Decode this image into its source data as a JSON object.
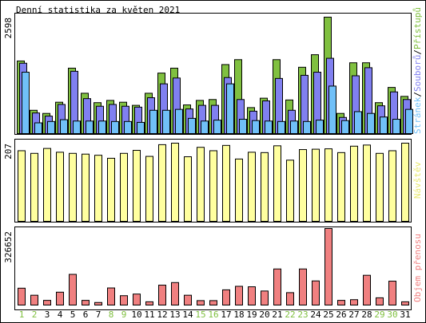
{
  "title": "Denní statistika za květen 2021",
  "panels": {
    "top": {
      "ymax_label": "2598",
      "legend": {
        "pages": "Stránek",
        "files": "Souborů",
        "hits": "Přístupů",
        "sep": "/"
      }
    },
    "middle": {
      "ymax_label": "207",
      "legend": "Návštěv"
    },
    "bottom": {
      "ymax_label": "326652",
      "legend": "Objem přenosu"
    }
  },
  "colors": {
    "hits": "#80c040",
    "files": "#8080f0",
    "pages": "#70c0f8",
    "visits": "#ffff9f",
    "kbytes": "#f08080",
    "weekend_label": "#80c040",
    "weekday_label": "#000000",
    "plot_bg": "#ffffff",
    "frame": "#000000"
  },
  "chart_data": [
    {
      "type": "bar",
      "title": "Denní statistika za květen 2021",
      "categories": [
        "1",
        "2",
        "3",
        "4",
        "5",
        "6",
        "7",
        "8",
        "9",
        "10",
        "11",
        "12",
        "13",
        "14",
        "15",
        "16",
        "17",
        "18",
        "19",
        "20",
        "21",
        "22",
        "23",
        "24",
        "25",
        "26",
        "27",
        "28",
        "29",
        "30",
        "31"
      ],
      "weekend_days": [
        "1",
        "2",
        "8",
        "9",
        "15",
        "16",
        "22",
        "23",
        "29",
        "30"
      ],
      "ylim": [
        0,
        2598
      ],
      "series": [
        {
          "name": "Přístupů",
          "values": [
            1620,
            520,
            450,
            700,
            1460,
            900,
            690,
            740,
            700,
            630,
            900,
            1350,
            1460,
            640,
            740,
            760,
            1540,
            1650,
            580,
            790,
            1650,
            750,
            1480,
            1760,
            2598,
            450,
            1580,
            1580,
            690,
            1030,
            830
          ]
        },
        {
          "name": "Souborů",
          "values": [
            1570,
            460,
            390,
            650,
            1390,
            780,
            610,
            650,
            610,
            590,
            800,
            1110,
            1240,
            550,
            630,
            630,
            1250,
            760,
            500,
            730,
            1230,
            520,
            1300,
            1370,
            1680,
            360,
            1290,
            1470,
            620,
            930,
            760
          ]
        },
        {
          "name": "Stránek",
          "values": [
            1370,
            240,
            270,
            310,
            280,
            280,
            280,
            270,
            270,
            250,
            520,
            520,
            540,
            340,
            280,
            300,
            1110,
            320,
            290,
            280,
            270,
            280,
            270,
            300,
            1060,
            290,
            490,
            450,
            370,
            320,
            540
          ]
        }
      ]
    },
    {
      "type": "bar",
      "categories": [
        "1",
        "2",
        "3",
        "4",
        "5",
        "6",
        "7",
        "8",
        "9",
        "10",
        "11",
        "12",
        "13",
        "14",
        "15",
        "16",
        "17",
        "18",
        "19",
        "20",
        "21",
        "22",
        "23",
        "24",
        "25",
        "26",
        "27",
        "28",
        "29",
        "30",
        "31"
      ],
      "ylim": [
        0,
        207
      ],
      "series": [
        {
          "name": "Návštěv",
          "values": [
            187,
            180,
            193,
            183,
            180,
            178,
            175,
            167,
            180,
            188,
            172,
            203,
            207,
            171,
            196,
            187,
            201,
            165,
            183,
            182,
            200,
            162,
            190,
            191,
            192,
            182,
            199,
            202,
            180,
            187,
            207
          ]
        }
      ]
    },
    {
      "type": "bar",
      "categories": [
        "1",
        "2",
        "3",
        "4",
        "5",
        "6",
        "7",
        "8",
        "9",
        "10",
        "11",
        "12",
        "13",
        "14",
        "15",
        "16",
        "17",
        "18",
        "19",
        "20",
        "21",
        "22",
        "23",
        "24",
        "25",
        "26",
        "27",
        "28",
        "29",
        "30",
        "31"
      ],
      "ylim": [
        0,
        326652
      ],
      "series": [
        {
          "name": "Objem přenosu",
          "values": [
            72000,
            42000,
            20000,
            55000,
            131000,
            20000,
            11000,
            73000,
            40000,
            47000,
            14000,
            85000,
            96000,
            42000,
            19000,
            19000,
            65000,
            80000,
            78000,
            60000,
            154000,
            53000,
            154000,
            103000,
            326652,
            20000,
            23000,
            127000,
            31000,
            102000,
            14000
          ]
        }
      ]
    }
  ]
}
